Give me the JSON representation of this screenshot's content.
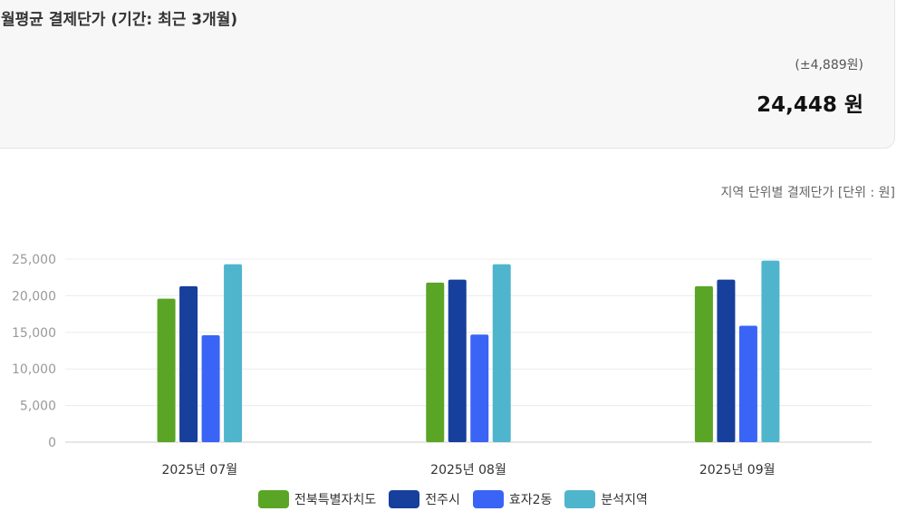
{
  "summary": {
    "title": "월평균 결제단가 (기간: 최근 3개월)",
    "range": "(±4,889원)",
    "value": "24,448 원"
  },
  "chart_caption": "지역 단위별 결제단가 [단위 : 원]",
  "colors": {
    "series": [
      "#5aa526",
      "#173f9c",
      "#3a64f5",
      "#4fb5cc"
    ],
    "grid": "#ececec",
    "axis": "#cccccc"
  },
  "chart_data": {
    "type": "bar",
    "title": "",
    "xlabel": "",
    "ylabel": "",
    "ylim": [
      0,
      25000
    ],
    "yticks": [
      0,
      5000,
      10000,
      15000,
      20000,
      25000
    ],
    "ytick_labels": [
      "0",
      "5,000",
      "10,000",
      "15,000",
      "20,000",
      "25,000"
    ],
    "grid": true,
    "legend_position": "bottom",
    "categories": [
      "2025년 07월",
      "2025년 08월",
      "2025년 09월"
    ],
    "series": [
      {
        "name": "전북특별자치도",
        "values": [
          19600,
          21800,
          21300
        ]
      },
      {
        "name": "전주시",
        "values": [
          21300,
          22200,
          22200
        ]
      },
      {
        "name": "효자2동",
        "values": [
          14600,
          14700,
          15900
        ]
      },
      {
        "name": "분석지역",
        "values": [
          24300,
          24300,
          24800
        ]
      }
    ]
  }
}
